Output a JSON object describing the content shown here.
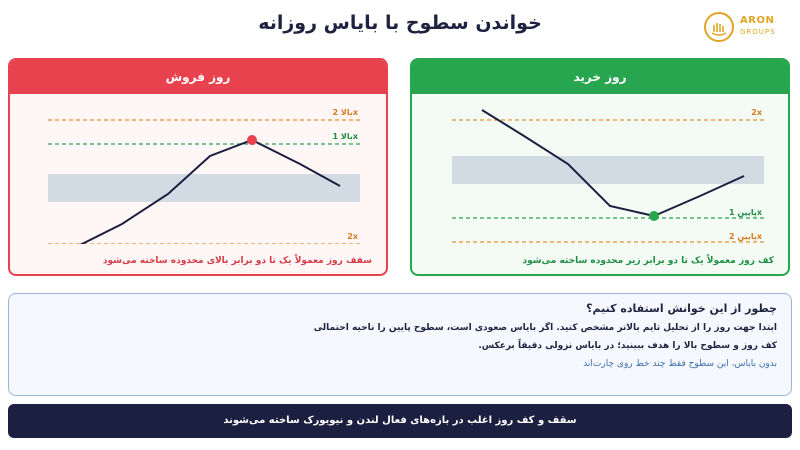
{
  "title": "خواندن سطوح با بایاس روزانه",
  "logo": {
    "name": "ARON",
    "sub": "GROUPS"
  },
  "sell_panel": {
    "header": "روز فروش",
    "levels": {
      "top2": "بالا 2x",
      "top1": "بالا 1x",
      "bottom2": "2x"
    },
    "note": "سقف روز معمولاً یک تا دو برابر بالای محدوده ساخته می‌شود",
    "colors": {
      "accent": "#e8424f",
      "level": "#e8932e",
      "hit": "#27a54f",
      "dot": "#e8424f"
    }
  },
  "buy_panel": {
    "header": "روز خرید",
    "levels": {
      "top2": "2x",
      "bottom1": "پایین 1x",
      "bottom2": "پایین 2x"
    },
    "note": "کف روز معمولاً یک تا دو برابر زیر محدوده ساخته می‌شود",
    "colors": {
      "accent": "#27a54f",
      "level": "#e8932e",
      "hit": "#27a54f",
      "dot": "#27a54f"
    }
  },
  "info": {
    "title": "چطور از این خوانش استفاده کنیم؟",
    "line1": "ابتدا جهت روز را از تحلیل تایم بالاتر مشخص کنید. اگر بایاس صعودی است، سطوح پایین را ناحیه احتمالی",
    "line2": "کف روز و سطوح بالا را هدف ببینید؛ در بایاس نزولی دقیقاً برعکس.",
    "hint": "بدون بایاس، این سطوح فقط چند خط روی چارت‌اند"
  },
  "footer": "سقف و کف روز اغلب در بازه‌های فعال لندن و نیویورک ساخته می‌شوند"
}
